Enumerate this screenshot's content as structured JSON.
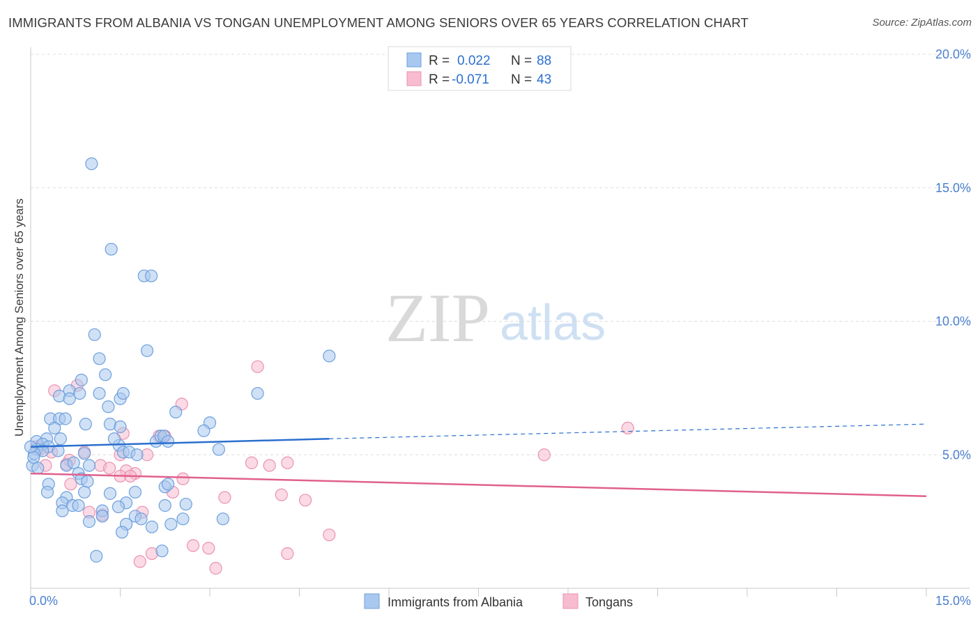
{
  "header": {
    "title": "IMMIGRANTS FROM ALBANIA VS TONGAN UNEMPLOYMENT AMONG SENIORS OVER 65 YEARS CORRELATION CHART",
    "source": "Source: ZipAtlas.com"
  },
  "watermark": {
    "zip": "ZIP",
    "atlas": "atlas"
  },
  "colors": {
    "blue_fill": "#a9c8ef",
    "blue_stroke": "#6d9fdc",
    "blue_line": "#2b6fcf",
    "pink_fill": "#f7bccf",
    "pink_stroke": "#e992b0",
    "pink_line": "#e0608d",
    "accent_text": "#2b6fcf"
  },
  "legend": {
    "r_label": "R =",
    "n_label": "N =",
    "rows": [
      {
        "r": "0.022",
        "n": "88"
      },
      {
        "r": "-0.071",
        "n": "43"
      }
    ]
  },
  "chart_data": {
    "type": "scatter",
    "title": "IMMIGRANTS FROM ALBANIA VS TONGAN UNEMPLOYMENT AMONG SENIORS OVER 65 YEARS CORRELATION CHART",
    "xlabel": "",
    "ylabel": "Unemployment Among Seniors over 65 years",
    "xlim": [
      0,
      15
    ],
    "ylim": [
      0,
      20
    ],
    "x_tick_labels": [
      {
        "value": 0,
        "label": "0.0%"
      },
      {
        "value": 15,
        "label": "15.0%"
      }
    ],
    "y_tick_labels": [
      {
        "value": 5,
        "label": "5.0%"
      },
      {
        "value": 10,
        "label": "10.0%"
      },
      {
        "value": 15,
        "label": "15.0%"
      },
      {
        "value": 20,
        "label": "20.0%"
      }
    ],
    "grid": true,
    "series": [
      {
        "name": "Immigrants from Albania",
        "color": "blue",
        "r": 0.022,
        "n": 88,
        "trend": {
          "x0": 0.0,
          "y0": 5.3,
          "x1": 5.0,
          "y1": 5.6,
          "dash_to_x": 15.0,
          "dash_to_y": 6.15
        },
        "points": [
          [
            1.02,
            15.9
          ],
          [
            1.35,
            12.7
          ],
          [
            1.9,
            11.7
          ],
          [
            2.02,
            11.7
          ],
          [
            1.07,
            9.5
          ],
          [
            1.95,
            8.9
          ],
          [
            1.15,
            8.6
          ],
          [
            5.0,
            8.7
          ],
          [
            1.25,
            8.0
          ],
          [
            0.85,
            7.8
          ],
          [
            0.65,
            7.4
          ],
          [
            0.82,
            7.3
          ],
          [
            0.48,
            7.2
          ],
          [
            0.65,
            7.1
          ],
          [
            1.15,
            7.3
          ],
          [
            1.5,
            7.1
          ],
          [
            1.55,
            7.3
          ],
          [
            3.8,
            7.3
          ],
          [
            1.3,
            6.8
          ],
          [
            2.43,
            6.6
          ],
          [
            0.33,
            6.35
          ],
          [
            0.48,
            6.35
          ],
          [
            0.58,
            6.35
          ],
          [
            0.4,
            6.0
          ],
          [
            0.92,
            6.15
          ],
          [
            1.33,
            6.15
          ],
          [
            1.5,
            6.05
          ],
          [
            3.0,
            6.2
          ],
          [
            2.9,
            5.9
          ],
          [
            0.27,
            5.6
          ],
          [
            0.5,
            5.6
          ],
          [
            0.1,
            5.5
          ],
          [
            0.2,
            5.4
          ],
          [
            0.3,
            5.3
          ],
          [
            0.1,
            5.2
          ],
          [
            0.2,
            5.15
          ],
          [
            0.46,
            5.15
          ],
          [
            0.9,
            5.05
          ],
          [
            0.06,
            5.05
          ],
          [
            1.48,
            5.35
          ],
          [
            1.55,
            5.1
          ],
          [
            1.65,
            5.1
          ],
          [
            1.4,
            5.6
          ],
          [
            1.78,
            5.0
          ],
          [
            2.1,
            5.5
          ],
          [
            2.18,
            5.7
          ],
          [
            2.23,
            5.7
          ],
          [
            2.3,
            5.5
          ],
          [
            3.15,
            5.2
          ],
          [
            0.03,
            4.6
          ],
          [
            0.12,
            4.5
          ],
          [
            0.6,
            4.6
          ],
          [
            0.72,
            4.7
          ],
          [
            0.98,
            4.6
          ],
          [
            0.8,
            4.3
          ],
          [
            0.85,
            4.1
          ],
          [
            0.95,
            4.0
          ],
          [
            0.3,
            3.9
          ],
          [
            2.25,
            3.8
          ],
          [
            2.3,
            3.9
          ],
          [
            0.28,
            3.6
          ],
          [
            0.6,
            3.4
          ],
          [
            0.9,
            3.6
          ],
          [
            1.33,
            3.55
          ],
          [
            1.75,
            3.6
          ],
          [
            0.53,
            3.2
          ],
          [
            0.7,
            3.1
          ],
          [
            0.8,
            3.1
          ],
          [
            1.6,
            3.2
          ],
          [
            2.25,
            3.1
          ],
          [
            2.6,
            3.15
          ],
          [
            0.53,
            2.9
          ],
          [
            1.2,
            2.9
          ],
          [
            1.47,
            3.05
          ],
          [
            1.2,
            2.7
          ],
          [
            1.75,
            2.7
          ],
          [
            0.98,
            2.5
          ],
          [
            1.85,
            2.6
          ],
          [
            2.55,
            2.6
          ],
          [
            3.22,
            2.6
          ],
          [
            1.6,
            2.4
          ],
          [
            2.03,
            2.3
          ],
          [
            2.35,
            2.4
          ],
          [
            1.53,
            2.1
          ],
          [
            1.1,
            1.2
          ],
          [
            2.2,
            1.4
          ],
          [
            0.05,
            4.9
          ],
          [
            0.0,
            5.3
          ]
        ]
      },
      {
        "name": "Tongans",
        "color": "pink",
        "r": -0.071,
        "n": 43,
        "trend": {
          "x0": 0.0,
          "y0": 4.3,
          "x1": 15.0,
          "y1": 3.45
        },
        "points": [
          [
            3.8,
            8.3
          ],
          [
            0.4,
            7.4
          ],
          [
            0.78,
            7.6
          ],
          [
            2.53,
            6.9
          ],
          [
            10.0,
            6.0
          ],
          [
            1.55,
            5.8
          ],
          [
            2.15,
            5.7
          ],
          [
            2.25,
            5.7
          ],
          [
            0.1,
            5.3
          ],
          [
            0.35,
            5.1
          ],
          [
            0.9,
            5.1
          ],
          [
            1.5,
            5.0
          ],
          [
            1.95,
            5.0
          ],
          [
            8.6,
            5.0
          ],
          [
            0.65,
            4.8
          ],
          [
            0.6,
            4.65
          ],
          [
            1.17,
            4.6
          ],
          [
            1.32,
            4.5
          ],
          [
            1.6,
            4.4
          ],
          [
            1.75,
            4.3
          ],
          [
            3.7,
            4.7
          ],
          [
            4.0,
            4.6
          ],
          [
            4.3,
            4.7
          ],
          [
            1.5,
            4.2
          ],
          [
            1.67,
            4.2
          ],
          [
            2.55,
            4.1
          ],
          [
            0.67,
            3.9
          ],
          [
            2.38,
            3.6
          ],
          [
            3.25,
            3.4
          ],
          [
            4.2,
            3.5
          ],
          [
            4.6,
            3.3
          ],
          [
            0.98,
            2.85
          ],
          [
            1.87,
            2.85
          ],
          [
            1.2,
            2.75
          ],
          [
            5.0,
            2.0
          ],
          [
            2.72,
            1.6
          ],
          [
            2.98,
            1.5
          ],
          [
            2.03,
            1.3
          ],
          [
            4.3,
            1.3
          ],
          [
            1.83,
            1.0
          ],
          [
            3.1,
            0.75
          ],
          [
            0.15,
            5.2
          ],
          [
            0.25,
            4.6
          ]
        ]
      }
    ]
  }
}
